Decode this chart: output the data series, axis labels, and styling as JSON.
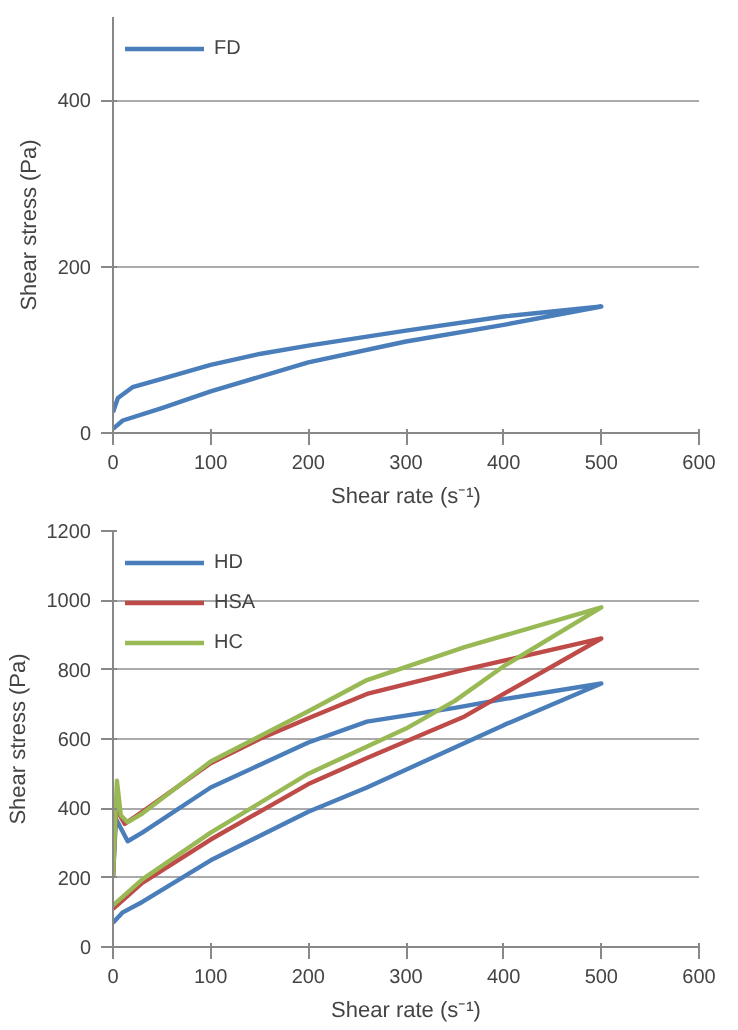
{
  "chart_data": [
    {
      "type": "line",
      "xlabel": "Shear rate (s⁻¹)",
      "ylabel": "Shear stress (Pa)",
      "xlim": [
        0,
        600
      ],
      "ylim": [
        0,
        500
      ],
      "xticks": [
        0,
        100,
        200,
        300,
        400,
        500,
        600
      ],
      "yticks": [
        0,
        200,
        400
      ],
      "grid": "y",
      "legend": "top left",
      "marker": "none",
      "line_style": "solid",
      "series": [
        {
          "name": "FD",
          "color": "#4a7ebb",
          "x": [
            0,
            10,
            50,
            100,
            200,
            300,
            400,
            500,
            400,
            300,
            200,
            150,
            100,
            50,
            20,
            5,
            0
          ],
          "values": [
            5,
            15,
            30,
            50,
            85,
            110,
            130,
            152,
            140,
            123,
            105,
            95,
            82,
            65,
            55,
            42,
            25
          ]
        }
      ]
    },
    {
      "type": "line",
      "xlabel": "Shear rate (s⁻¹)",
      "ylabel": "Shear stress (Pa)",
      "xlim": [
        0,
        600
      ],
      "ylim": [
        0,
        1200
      ],
      "xticks": [
        0,
        100,
        200,
        300,
        400,
        500,
        600
      ],
      "yticks": [
        0,
        200,
        400,
        600,
        800,
        1000,
        1200
      ],
      "grid": "y",
      "legend": "top left",
      "marker": "none",
      "line_style": "solid",
      "series": [
        {
          "name": "HD",
          "color": "#4a7ebb",
          "x": [
            0,
            3,
            15,
            30,
            100,
            200,
            260,
            350,
            400,
            500,
            400,
            260,
            200,
            100,
            30,
            10,
            0
          ],
          "values": [
            200,
            370,
            305,
            330,
            460,
            590,
            650,
            690,
            715,
            760,
            640,
            460,
            390,
            250,
            130,
            100,
            70
          ]
        },
        {
          "name": "HSA",
          "color": "#be4b48",
          "x": [
            0,
            3,
            12,
            30,
            100,
            150,
            200,
            260,
            360,
            500,
            400,
            360,
            260,
            200,
            100,
            30,
            0
          ],
          "values": [
            200,
            400,
            355,
            390,
            530,
            600,
            660,
            730,
            800,
            890,
            730,
            665,
            545,
            470,
            310,
            185,
            110
          ]
        },
        {
          "name": "HC",
          "color": "#98b954",
          "x": [
            0,
            4,
            8,
            15,
            30,
            100,
            200,
            260,
            360,
            500,
            400,
            350,
            300,
            200,
            100,
            30,
            0
          ],
          "values": [
            200,
            480,
            380,
            360,
            385,
            535,
            680,
            770,
            865,
            980,
            810,
            710,
            630,
            500,
            330,
            195,
            120
          ]
        }
      ]
    }
  ]
}
